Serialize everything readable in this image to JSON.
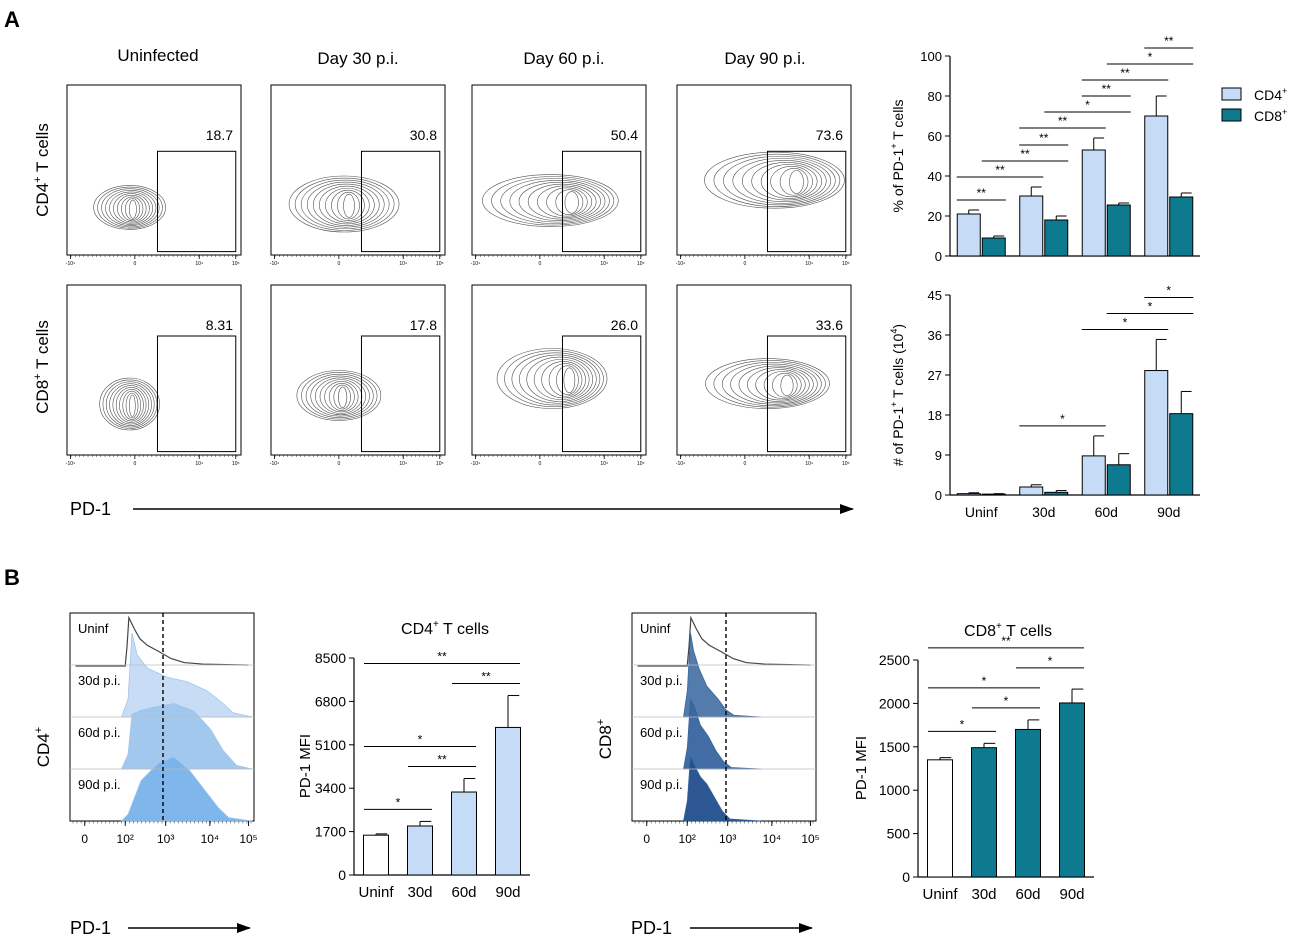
{
  "panel_a": {
    "label": "A",
    "column_headers": [
      "Uninfected",
      "Day 30 p.i.",
      "Day 60 p.i.",
      "Day 90 p.i."
    ],
    "row_labels": [
      {
        "base": "CD4",
        "sup": "+",
        "rest": " T cells"
      },
      {
        "base": "CD8",
        "sup": "+",
        "rest": " T cells"
      }
    ],
    "gate_values": [
      [
        "18.7",
        "30.8",
        "50.4",
        "73.6"
      ],
      [
        "8.31",
        "17.8",
        "26.0",
        "33.6"
      ]
    ],
    "x_axis_label": "PD-1",
    "flow_tick_labels": [
      "-10⁴",
      "0",
      "10⁴",
      "10⁵"
    ]
  },
  "panel_b": {
    "label": "B",
    "x_axis_label": "PD-1",
    "histograms": [
      {
        "ylabel": {
          "base": "CD4",
          "sup": "+"
        },
        "rows": [
          "Uninf",
          "30d p.i.",
          "60d p.i.",
          "90d p.i."
        ],
        "colors": [
          "#c6dcf5",
          "#9ec6ee",
          "#79b3ea"
        ]
      },
      {
        "ylabel": {
          "base": "CD8",
          "sup": "+"
        },
        "rows": [
          "Uninf",
          "30d p.i.",
          "60d p.i.",
          "90d p.i."
        ],
        "colors": [
          "#4a74a8",
          "#3866a0",
          "#214f8e"
        ]
      }
    ],
    "hist_ticks": [
      "0",
      "10²",
      "10³",
      "10⁴",
      "10⁵"
    ]
  },
  "colors": {
    "cd4": "#c6dcf6",
    "cd8": "#0e7a8f",
    "cd4_mfi": "#c6dcf6",
    "cd8_mfi": "#0e7a8f",
    "white": "#ffffff"
  },
  "chart_data": [
    {
      "id": "pct_pd1",
      "type": "bar",
      "ylabel": {
        "a": "% of PD-1",
        "sup": "+",
        "b": " T cells"
      },
      "categories": [
        "Uninf",
        "30d",
        "60d",
        "90d"
      ],
      "ylim": [
        0,
        100
      ],
      "yticks": [
        0,
        20,
        40,
        60,
        80,
        100
      ],
      "show_xticklabels": false,
      "series": [
        {
          "name": "CD4",
          "sup": "+",
          "values": [
            21,
            30,
            53,
            70
          ],
          "errors": [
            2,
            4.5,
            6,
            10
          ]
        },
        {
          "name": "CD8",
          "sup": "+",
          "values": [
            9,
            18,
            25.5,
            29.5
          ],
          "errors": [
            1,
            2,
            1,
            2
          ]
        }
      ],
      "annotations": [
        {
          "from": [
            0,
            0
          ],
          "to": [
            0,
            1
          ],
          "text": "**"
        },
        {
          "from": [
            0,
            0
          ],
          "to": [
            1,
            0
          ],
          "text": "**"
        },
        {
          "from": [
            0,
            1
          ],
          "to": [
            1,
            1
          ],
          "text": "**"
        },
        {
          "from": [
            1,
            0
          ],
          "to": [
            1,
            1
          ],
          "text": "**"
        },
        {
          "from": [
            1,
            0
          ],
          "to": [
            2,
            0
          ],
          "text": "**"
        },
        {
          "from": [
            1,
            1
          ],
          "to": [
            2,
            1
          ],
          "text": "*"
        },
        {
          "from": [
            2,
            0
          ],
          "to": [
            2,
            1
          ],
          "text": "**"
        },
        {
          "from": [
            2,
            0
          ],
          "to": [
            3,
            0
          ],
          "text": "**"
        },
        {
          "from": [
            2,
            1
          ],
          "to": [
            3,
            1
          ],
          "text": "*"
        },
        {
          "from": [
            3,
            0
          ],
          "to": [
            3,
            1
          ],
          "text": "**"
        }
      ]
    },
    {
      "id": "num_pd1",
      "type": "bar",
      "ylabel": {
        "a": "# of PD-1",
        "sup": "+",
        "b": " T cells (10",
        "sup2": "4",
        "c": ")"
      },
      "categories": [
        "Uninf",
        "30d",
        "60d",
        "90d"
      ],
      "ylim": [
        0,
        45
      ],
      "yticks": [
        0,
        9,
        18,
        27,
        36,
        45
      ],
      "show_xticklabels": true,
      "series": [
        {
          "name": "CD4",
          "sup": "+",
          "values": [
            0.3,
            1.8,
            8.8,
            28
          ],
          "errors": [
            0.2,
            0.5,
            4.5,
            7
          ]
        },
        {
          "name": "CD8",
          "sup": "+",
          "values": [
            0.2,
            0.6,
            6.8,
            18.3
          ],
          "errors": [
            0.1,
            0.4,
            2.5,
            5
          ]
        }
      ],
      "annotations": [
        {
          "from": [
            1,
            0
          ],
          "to": [
            2,
            0
          ],
          "text": "*"
        },
        {
          "from": [
            2,
            0
          ],
          "to": [
            3,
            0
          ],
          "text": "*"
        },
        {
          "from": [
            2,
            1
          ],
          "to": [
            3,
            1
          ],
          "text": "*"
        },
        {
          "from": [
            3,
            0
          ],
          "to": [
            3,
            1
          ],
          "text": "*"
        }
      ]
    },
    {
      "id": "cd4_mfi",
      "type": "bar",
      "title": {
        "base": "CD4",
        "sup": "+",
        "rest": " T cells"
      },
      "ylabel": "PD-1 MFI",
      "categories": [
        "Uninf",
        "30d",
        "60d",
        "90d"
      ],
      "ylim": [
        0,
        8500
      ],
      "yticks": [
        0,
        1700,
        3400,
        5100,
        6800,
        8500
      ],
      "values": [
        1560,
        1920,
        3250,
        5780
      ],
      "errors": [
        50,
        180,
        530,
        1250
      ],
      "annotations": [
        {
          "from": 0,
          "to": 1,
          "text": "*"
        },
        {
          "from": 1,
          "to": 2,
          "text": "**"
        },
        {
          "from": 0,
          "to": 2,
          "text": "*"
        },
        {
          "from": 2,
          "to": 3,
          "text": "**"
        },
        {
          "from": 0,
          "to": 3,
          "text": "**"
        }
      ]
    },
    {
      "id": "cd8_mfi",
      "type": "bar",
      "title": {
        "base": "CD8",
        "sup": "+",
        "rest": " T cells"
      },
      "ylabel": "PD-1 MFI",
      "categories": [
        "Uninf",
        "30d",
        "60d",
        "90d"
      ],
      "ylim": [
        0,
        2500
      ],
      "yticks": [
        0,
        500,
        1000,
        1500,
        2000,
        2500
      ],
      "values": [
        1350,
        1490,
        1700,
        2005
      ],
      "errors": [
        25,
        50,
        110,
        160
      ],
      "annotations": [
        {
          "from": 0,
          "to": 1,
          "text": "*"
        },
        {
          "from": 1,
          "to": 2,
          "text": "*"
        },
        {
          "from": 0,
          "to": 2,
          "text": "*"
        },
        {
          "from": 2,
          "to": 3,
          "text": "*"
        },
        {
          "from": 0,
          "to": 3,
          "text": "**"
        }
      ]
    }
  ]
}
